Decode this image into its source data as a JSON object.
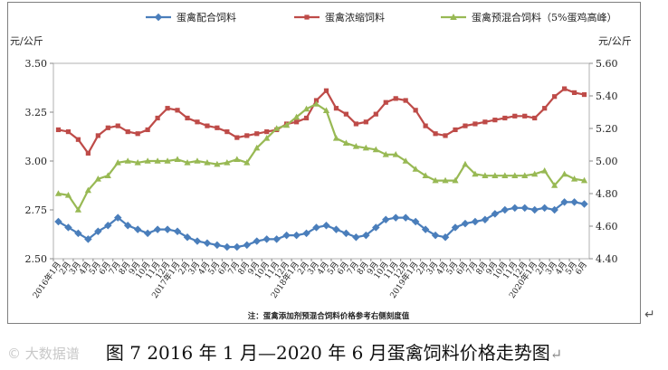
{
  "chart_data": {
    "type": "line",
    "title": "",
    "unit_left": "元/公斤",
    "unit_right": "元/公斤",
    "ylim_left": [
      2.5,
      3.5
    ],
    "yticks_left": [
      "3.50",
      "3.25",
      "3.00",
      "2.75",
      "2.50"
    ],
    "ylim_right": [
      4.4,
      5.6
    ],
    "yticks_right": [
      "5.60",
      "5.40",
      "5.20",
      "5.00",
      "4.80",
      "4.60",
      "4.40"
    ],
    "categories": [
      "2016年1月",
      "2月",
      "3月",
      "4月",
      "5月",
      "6月",
      "7月",
      "8月",
      "9月",
      "10月",
      "11月",
      "12月",
      "2017年1月",
      "2月",
      "3月",
      "4月",
      "5月",
      "6月",
      "7月",
      "8月",
      "9月",
      "10月",
      "11月",
      "12月",
      "2018年1月",
      "2月",
      "3月",
      "4月",
      "5月",
      "6月",
      "7月",
      "8月",
      "9月",
      "10月",
      "11月",
      "12月",
      "2019年1月",
      "2月",
      "3月",
      "4月",
      "5月",
      "6月",
      "7月",
      "8月",
      "9月",
      "10月",
      "11月",
      "12月",
      "2020年1月",
      "2月",
      "3月",
      "4月",
      "5月",
      "6月"
    ],
    "series": [
      {
        "name": "蛋禽配合饲料",
        "axis": "left",
        "color": "#4a7ebb",
        "values": [
          2.69,
          2.66,
          2.63,
          2.6,
          2.64,
          2.67,
          2.71,
          2.67,
          2.65,
          2.63,
          2.65,
          2.65,
          2.64,
          2.61,
          2.59,
          2.58,
          2.57,
          2.56,
          2.56,
          2.57,
          2.59,
          2.6,
          2.6,
          2.62,
          2.62,
          2.63,
          2.66,
          2.67,
          2.65,
          2.63,
          2.61,
          2.62,
          2.66,
          2.7,
          2.71,
          2.71,
          2.69,
          2.65,
          2.62,
          2.61,
          2.66,
          2.68,
          2.69,
          2.7,
          2.73,
          2.75,
          2.76,
          2.76,
          2.75,
          2.76,
          2.75,
          2.79,
          2.79,
          2.78
        ]
      },
      {
        "name": "蛋禽浓缩饲料",
        "axis": "left",
        "color": "#be4b48",
        "values": [
          3.16,
          3.15,
          3.11,
          3.04,
          3.13,
          3.17,
          3.18,
          3.15,
          3.14,
          3.16,
          3.22,
          3.27,
          3.26,
          3.22,
          3.2,
          3.18,
          3.17,
          3.15,
          3.12,
          3.13,
          3.14,
          3.15,
          3.16,
          3.19,
          3.2,
          3.22,
          3.31,
          3.36,
          3.27,
          3.24,
          3.19,
          3.2,
          3.24,
          3.3,
          3.32,
          3.31,
          3.26,
          3.18,
          3.14,
          3.13,
          3.16,
          3.18,
          3.19,
          3.2,
          3.21,
          3.22,
          3.23,
          3.23,
          3.22,
          3.27,
          3.33,
          3.37,
          3.35,
          3.34
        ]
      },
      {
        "name": "蛋禽预混合饲料（5%蛋鸡高峰）",
        "axis": "right",
        "color": "#98b954",
        "values": [
          4.8,
          4.79,
          4.7,
          4.82,
          4.89,
          4.91,
          4.99,
          5.0,
          4.99,
          5.0,
          5.0,
          5.0,
          5.01,
          4.99,
          5.0,
          4.99,
          4.98,
          4.99,
          5.01,
          4.99,
          5.08,
          5.14,
          5.2,
          5.22,
          5.27,
          5.32,
          5.35,
          5.31,
          5.14,
          5.11,
          5.09,
          5.08,
          5.07,
          5.04,
          5.04,
          5.0,
          4.95,
          4.91,
          4.88,
          4.88,
          4.88,
          4.98,
          4.92,
          4.91,
          4.91,
          4.91,
          4.91,
          4.91,
          4.92,
          4.94,
          4.85,
          4.92,
          4.89,
          4.88
        ]
      }
    ],
    "legend_position": "top",
    "note": "注：蛋禽添加剂预混合饲料价格参考右侧刻度值"
  },
  "caption": {
    "text": "图 7    2016 年 1 月—2020 年 6 月蛋禽饲料价格走势图",
    "para_mark": "↵"
  },
  "watermark": "© 大数据谱"
}
